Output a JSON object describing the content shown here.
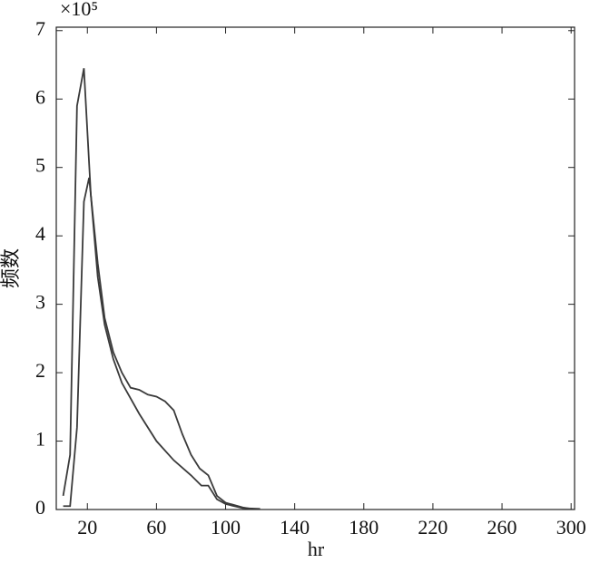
{
  "chart_data": {
    "type": "line",
    "x_label": "hr",
    "y_label": "频数",
    "y_multiplier": "×10⁵",
    "xlim": [
      2,
      302
    ],
    "ylim": [
      0,
      7.05
    ],
    "xticks": [
      20,
      60,
      100,
      140,
      180,
      220,
      260,
      300
    ],
    "yticks": [
      0,
      1,
      2,
      3,
      4,
      5,
      6,
      7
    ],
    "series": [
      {
        "color": "#3a3a3a",
        "x": [
          6,
          10,
          14,
          18,
          22,
          26,
          30,
          35,
          40,
          50,
          60,
          70,
          80,
          86,
          90,
          95,
          100,
          110,
          120
        ],
        "values": [
          0.2,
          0.8,
          5.9,
          6.45,
          4.6,
          3.4,
          2.7,
          2.2,
          1.85,
          1.4,
          1.0,
          0.72,
          0.5,
          0.35,
          0.35,
          0.15,
          0.08,
          0.02,
          0.01
        ]
      },
      {
        "color": "#3a3a3a",
        "x": [
          6,
          10,
          14,
          18,
          21,
          26,
          30,
          35,
          40,
          45,
          50,
          55,
          60,
          65,
          70,
          75,
          80,
          85,
          90,
          95,
          100,
          110,
          115
        ],
        "values": [
          0.05,
          0.05,
          1.2,
          4.5,
          4.85,
          3.6,
          2.8,
          2.3,
          2.0,
          1.78,
          1.75,
          1.68,
          1.65,
          1.58,
          1.45,
          1.1,
          0.8,
          0.6,
          0.5,
          0.2,
          0.1,
          0.03,
          0.01
        ]
      }
    ]
  }
}
